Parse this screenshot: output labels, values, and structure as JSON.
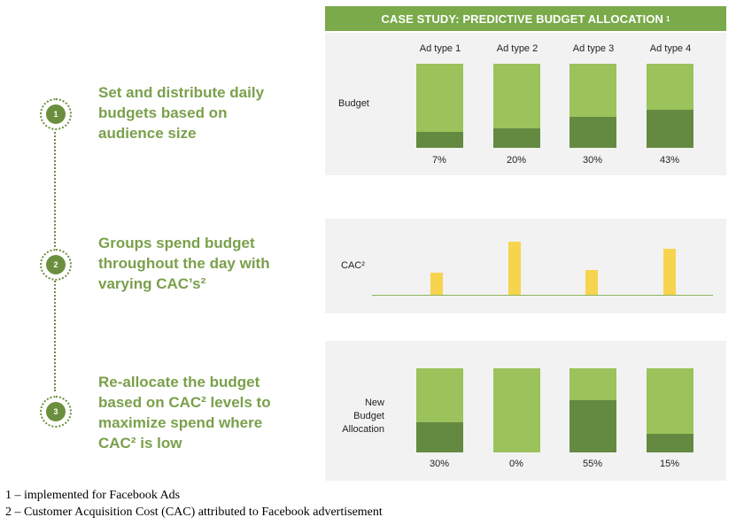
{
  "header": {
    "title": "CASE STUDY: PREDICTIVE BUDGET ALLOCATION",
    "sup": "1"
  },
  "steps": [
    {
      "num": "1",
      "lines": [
        "Set and distribute daily",
        "budgets based on",
        "audience size"
      ]
    },
    {
      "num": "2",
      "lines": [
        "Groups spend budget",
        "throughout the day with",
        "varying CAC’s²"
      ]
    },
    {
      "num": "3",
      "lines": [
        "Re-allocate the budget",
        "based on CAC² levels to",
        "maximize spend where",
        "CAC² is low"
      ]
    }
  ],
  "columns": [
    "Ad type 1",
    "Ad type 2",
    "Ad type 3",
    "Ad type 4"
  ],
  "panel1": {
    "label": "Budget",
    "percents": [
      "7%",
      "20%",
      "30%",
      "43%"
    ]
  },
  "panel2": {
    "label": "CAC²"
  },
  "panel3": {
    "label_lines": [
      "New",
      "Budget",
      "Allocation"
    ],
    "percents": [
      "30%",
      "0%",
      "55%",
      "15%"
    ]
  },
  "footnotes": [
    "1 – implemented for Facebook Ads",
    "2 – Customer Acquisition Cost (CAC) attributed to Facebook advertisement"
  ],
  "colors": {
    "light_green": "#9bc25b",
    "dark_green": "#648a41",
    "header_green": "#7aaa49",
    "cac_yellow": "#f6d44e",
    "text_green": "#7aa04b"
  },
  "chart_data": [
    {
      "type": "bar",
      "categories": [
        "Ad type 1",
        "Ad type 2",
        "Ad type 3",
        "Ad type 4"
      ],
      "values": [
        7,
        20,
        30,
        43
      ],
      "ylabel": "Budget"
    },
    {
      "type": "bar",
      "categories": [
        "Ad type 1",
        "Ad type 2",
        "Ad type 3",
        "Ad type 4"
      ],
      "values": [
        0.4,
        0.9,
        0.4,
        0.75
      ],
      "ylabel": "CAC²"
    },
    {
      "type": "bar",
      "categories": [
        "Ad type 1",
        "Ad type 2",
        "Ad type 3",
        "Ad type 4"
      ],
      "values": [
        30,
        0,
        55,
        15
      ],
      "ylabel": "New Budget Allocation"
    }
  ]
}
